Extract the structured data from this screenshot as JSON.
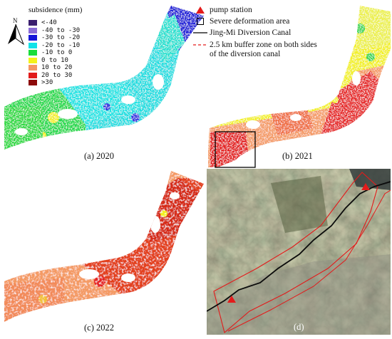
{
  "legend": {
    "title": "subsidence (mm)",
    "items": [
      {
        "label": "<-40",
        "color": "#3a1f6e"
      },
      {
        "label": "-40 to -30",
        "color": "#8a6bd6"
      },
      {
        "label": "-30 to -20",
        "color": "#1515d8"
      },
      {
        "label": "-20 to -10",
        "color": "#11e2e8"
      },
      {
        "label": "-10 to 0",
        "color": "#18dd3b"
      },
      {
        "label": "0 to 10",
        "color": "#f4f21a"
      },
      {
        "label": "10 to 20",
        "color": "#f49664"
      },
      {
        "label": "20 to 30",
        "color": "#e11a1a"
      },
      {
        "label": ">30",
        "color": "#8c0b0b"
      }
    ]
  },
  "north_arrow": {
    "label": "N"
  },
  "map_legend": {
    "items": [
      {
        "symbol": "red-triangle",
        "label": "pump station"
      },
      {
        "symbol": "square-outline",
        "label": "Severe deformation area"
      },
      {
        "symbol": "black-line",
        "label": "Jing-Mi Diversion Canal"
      },
      {
        "symbol": "red-dashed-line",
        "label": "2.5 km buffer zone on both sides of the diversion canal"
      }
    ]
  },
  "panels": [
    {
      "id": "a",
      "caption": "(a) 2020"
    },
    {
      "id": "b",
      "caption": "(b) 2021"
    },
    {
      "id": "c",
      "caption": "(c) 2022"
    },
    {
      "id": "d",
      "caption": "(d)"
    }
  ]
}
